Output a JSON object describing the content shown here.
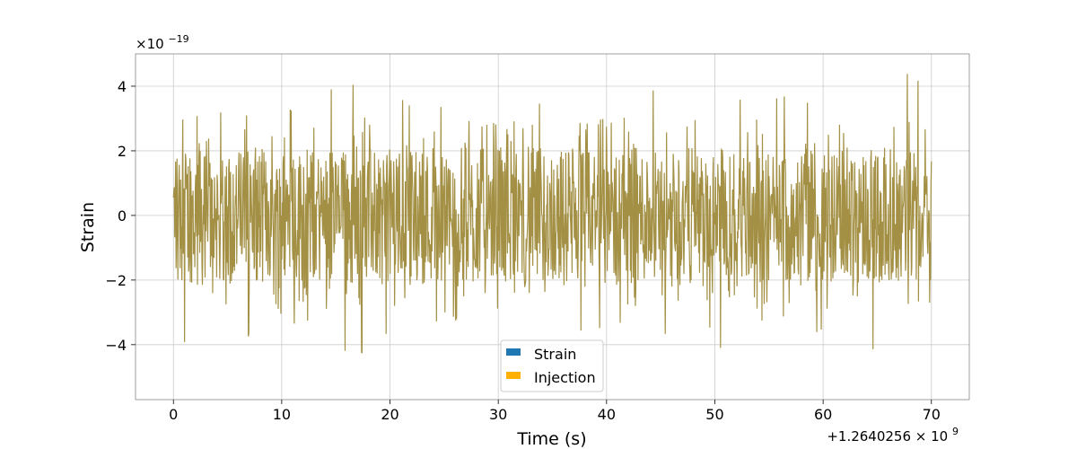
{
  "chart_data": {
    "type": "line",
    "title": "",
    "xlabel": "Time (s)",
    "ylabel": "Strain",
    "x_offset_label": "+1.2640256 × 10",
    "x_offset_exponent": "9",
    "y_multiplier_label": "×10",
    "y_multiplier_exponent": "−19",
    "xlim": [
      -3.5,
      73.5
    ],
    "ylim": [
      -5.7,
      5.0
    ],
    "grid": true,
    "legend_position": "bottom-center",
    "x_ticks": [
      0,
      10,
      20,
      30,
      40,
      50,
      60,
      70
    ],
    "x_tick_labels": [
      "0",
      "10",
      "20",
      "30",
      "40",
      "50",
      "60",
      "70"
    ],
    "y_ticks": [
      -4,
      -2,
      0,
      2,
      4
    ],
    "y_tick_labels": [
      "−4",
      "−2",
      "0",
      "2",
      "4"
    ],
    "series": [
      {
        "name": "Strain",
        "color": "#1f77b4",
        "x_start": 0,
        "x_end": 70,
        "typical_min": -2.5,
        "typical_max": 2.5,
        "envelope_peaks_max": [
          3.2,
          3.5,
          3.3,
          3.2,
          3.6,
          4.1,
          4.2,
          3.3,
          3.6,
          3.5,
          3.2,
          3.1,
          3.0,
          3.5,
          3.3,
          3.1,
          3.2,
          4.2,
          3.9,
          3.1,
          3.6,
          3.2,
          3.8,
          3.6,
          3.3,
          3.5,
          3.3,
          4.5
        ],
        "envelope_peaks_min": [
          -4.1,
          -4.5,
          -3.9,
          -3.3,
          -3.6,
          -3.2,
          -4.4,
          -3.8,
          -3.4,
          -3.5,
          -3.3,
          -3.6,
          -3.7,
          -3.4,
          -3.8,
          -3.7,
          -3.5,
          -3.4,
          -3.8,
          -3.5,
          -4.4,
          -3.6,
          -3.4,
          -3.8,
          -3.4,
          -4.6,
          -3.5,
          -5.1
        ]
      },
      {
        "name": "Injection",
        "color": "#ffb000"
      }
    ],
    "overlap_color": "#a39044"
  }
}
